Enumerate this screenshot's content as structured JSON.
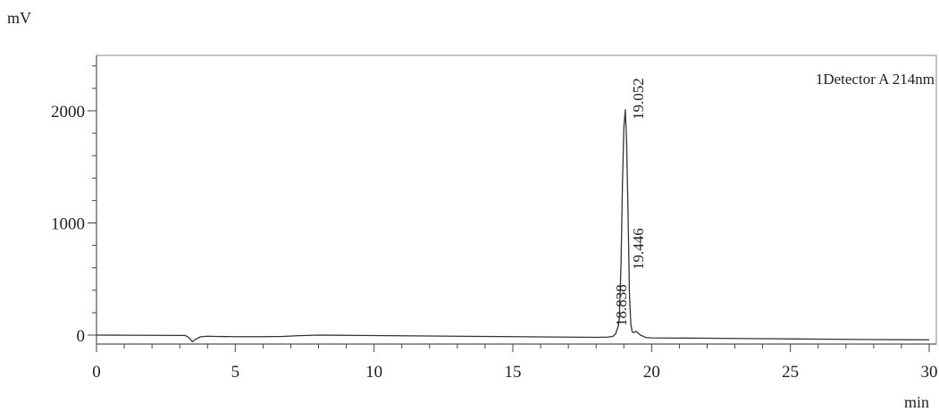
{
  "chart_data": {
    "type": "line",
    "title": "",
    "legend": "1Detector A 214nm",
    "legend_position": "top-right",
    "xlabel": "min",
    "ylabel": "mV",
    "xlim": [
      0,
      30
    ],
    "ylim": [
      -80,
      2500
    ],
    "grid": false,
    "x_ticks": [
      "0",
      "5",
      "10",
      "15",
      "20",
      "25",
      "30"
    ],
    "y_ticks": [
      "0",
      "1000",
      "2000"
    ],
    "line_color": "#333333",
    "series": [
      {
        "x": [
          0,
          1,
          2,
          3,
          3.2,
          3.35,
          3.45,
          3.55,
          3.75,
          4.0,
          4.3,
          5,
          6,
          6.7,
          7.3,
          8.0,
          9.0,
          10,
          12,
          14,
          16,
          17,
          18,
          18.4,
          18.6,
          18.7,
          18.8,
          18.838,
          18.9,
          18.95,
          19.0,
          19.052,
          19.1,
          19.15,
          19.2,
          19.25,
          19.3,
          19.35,
          19.4,
          19.446,
          19.5,
          19.6,
          19.8,
          20,
          22,
          24,
          26,
          28,
          30
        ],
        "y": [
          0,
          -1,
          -2,
          -3,
          -3,
          -25,
          -60,
          -40,
          -15,
          -10,
          -12,
          -14,
          -14,
          -12,
          -5,
          0,
          -2,
          -4,
          -8,
          -12,
          -16,
          -18,
          -20,
          -18,
          -12,
          10,
          80,
          150,
          650,
          1350,
          1850,
          2010,
          1720,
          1100,
          380,
          100,
          30,
          22,
          30,
          34,
          20,
          0,
          -22,
          -25,
          -28,
          -32,
          -36,
          -40,
          -42
        ]
      }
    ],
    "peaks": [
      {
        "rt": "18.838"
      },
      {
        "rt": "19.052"
      },
      {
        "rt": "19.446"
      }
    ]
  }
}
